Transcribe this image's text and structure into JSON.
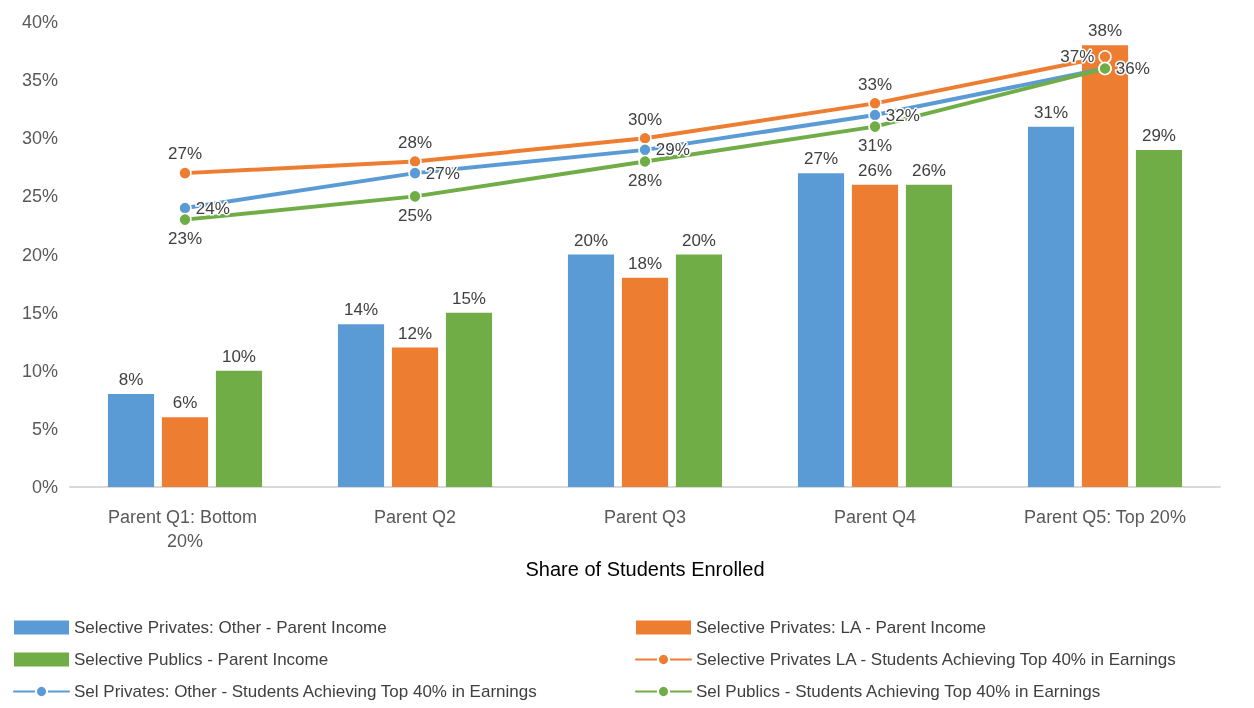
{
  "chart_data": {
    "type": "bar",
    "xlabel": "Share of Students Enrolled",
    "categories": [
      "Parent Q1: Bottom 20%",
      "Parent Q2",
      "Parent Q3",
      "Parent Q4",
      "Parent Q5: Top 20%"
    ],
    "series": [
      {
        "name": "Selective Privates: Other - Parent Income",
        "color": "#5b9bd5",
        "values": [
          8,
          14,
          20,
          27,
          31
        ],
        "value_labels": [
          "8%",
          "14%",
          "20%",
          "27%",
          "31%"
        ]
      },
      {
        "name": "Selective Privates: LA - Parent Income",
        "color": "#ed7d31",
        "values": [
          6,
          12,
          18,
          26,
          38
        ],
        "value_labels": [
          "6%",
          "12%",
          "18%",
          "26%",
          "38%"
        ]
      },
      {
        "name": "Selective Publics - Parent Income",
        "color": "#70ad47",
        "values": [
          10,
          15,
          20,
          26,
          29
        ],
        "value_labels": [
          "10%",
          "15%",
          "20%",
          "26%",
          "29%"
        ]
      },
      {
        "name": "Selective Privates LA - Students Achieving Top 40% in Earnings",
        "type": "line",
        "color": "#ed7d31",
        "values": [
          27,
          28,
          30,
          33,
          37
        ],
        "value_labels": [
          "27%",
          "28%",
          "30%",
          "33%",
          "37%"
        ]
      },
      {
        "name": "Sel Privates: Other - Students Achieving Top 40% in Earnings",
        "type": "line",
        "color": "#5b9bd5",
        "values": [
          24,
          27,
          29,
          32,
          36
        ],
        "value_labels": [
          "24%",
          "27%",
          "29%",
          "32%",
          null
        ]
      },
      {
        "name": "Sel Publics - Students Achieving Top 40% in Earnings",
        "type": "line",
        "color": "#70ad47",
        "values": [
          23,
          25,
          28,
          31,
          36
        ],
        "value_labels": [
          "23%",
          "25%",
          "28%",
          "31%",
          "36%"
        ]
      }
    ],
    "ylim": [
      0,
      40
    ],
    "yticks": [
      {
        "value": 0,
        "label": "0%"
      },
      {
        "value": 5,
        "label": "5%"
      },
      {
        "value": 10,
        "label": "10%"
      },
      {
        "value": 15,
        "label": "15%"
      },
      {
        "value": 20,
        "label": "20%"
      },
      {
        "value": 25,
        "label": "25%"
      },
      {
        "value": 30,
        "label": "30%"
      },
      {
        "value": 35,
        "label": "35%"
      },
      {
        "value": 40,
        "label": "40%"
      }
    ],
    "legend": "bottom",
    "marker": "circle",
    "line_style": "solid"
  }
}
